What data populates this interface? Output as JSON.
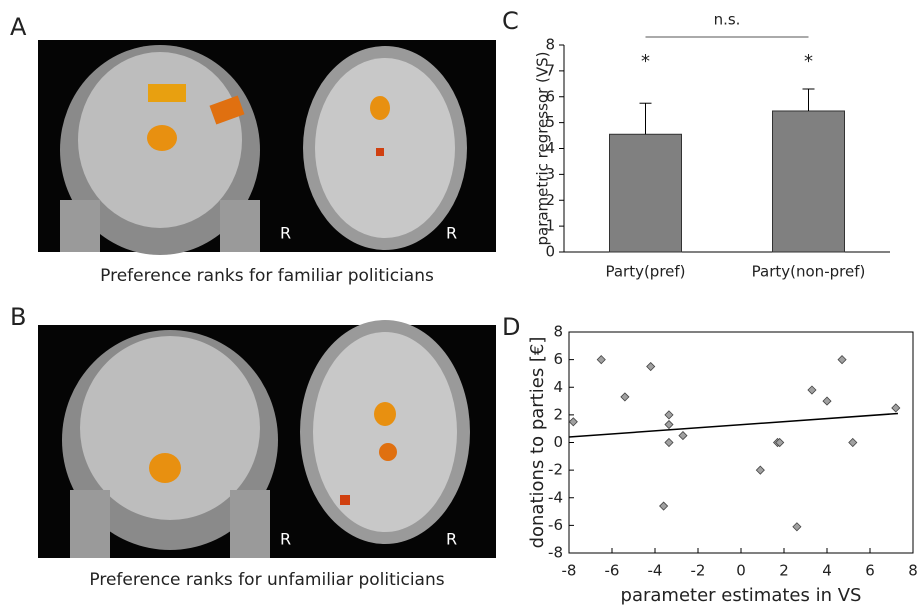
{
  "panel_labels": [
    "A",
    "B",
    "C",
    "D"
  ],
  "image_captions": [
    "Preference ranks for familiar politicians",
    "Preference ranks for unfamiliar politicians"
  ],
  "orientation_label": "R",
  "chart_data": [
    {
      "type": "bar",
      "y_label": "parametric regressor (VS)",
      "categories": [
        "Party(pref)",
        "Party(non-pref)"
      ],
      "values": [
        4.55,
        5.45
      ],
      "errors": [
        1.2,
        0.85
      ],
      "significance": [
        "*",
        "*"
      ],
      "bracket_label": "n.s.",
      "color": "#808080",
      "ylim": [
        0,
        8
      ],
      "yticks": [
        0,
        1,
        2,
        3,
        4,
        5,
        6,
        7,
        8
      ]
    },
    {
      "type": "scatter",
      "x_label": "parameter estimates in VS",
      "y_label": "donations to parties [€]",
      "x": [
        -7.8,
        -6.5,
        -5.4,
        -4.2,
        -3.6,
        -3.35,
        -3.35,
        -3.35,
        -2.7,
        0.9,
        1.7,
        1.8,
        2.6,
        3.3,
        4.0,
        4.7,
        5.2,
        7.2
      ],
      "y": [
        1.5,
        6,
        3.3,
        5.5,
        -4.6,
        2,
        1.3,
        0,
        0.5,
        -2,
        0,
        0,
        -6.1,
        3.8,
        3,
        6,
        0,
        2.5
      ],
      "color": "#a0a0a0",
      "trendline": {
        "x": [
          -8,
          7.3
        ],
        "y": [
          0.4,
          2.1
        ]
      },
      "xlim": [
        -8,
        8
      ],
      "xticks": [
        -8,
        -6,
        -4,
        -2,
        0,
        2,
        4,
        6,
        8
      ],
      "ylim": [
        -8,
        8
      ],
      "yticks": [
        -8,
        -6,
        -4,
        -2,
        0,
        2,
        4,
        6,
        8
      ]
    }
  ]
}
